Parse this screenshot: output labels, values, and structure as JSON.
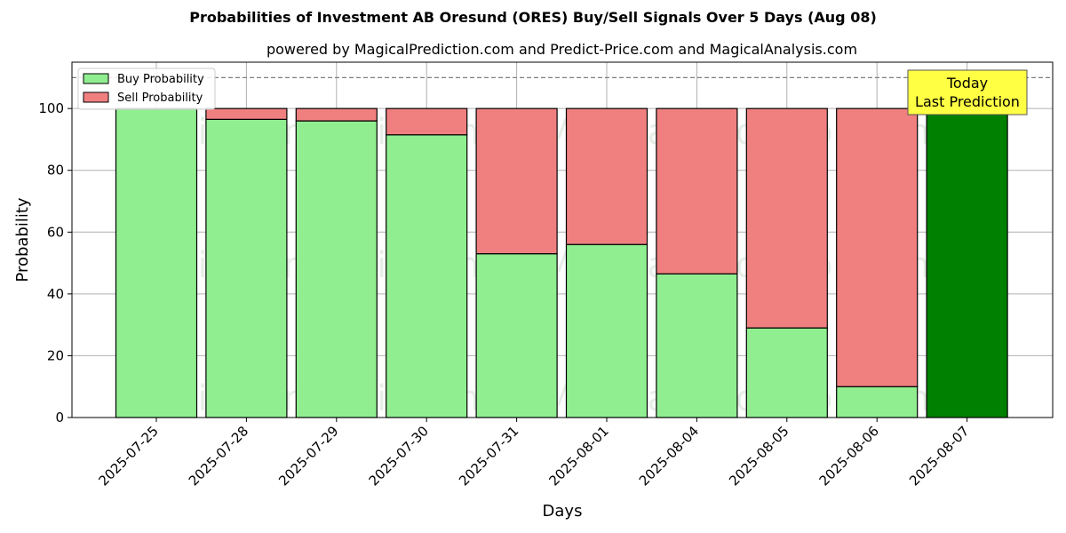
{
  "chart_data": {
    "type": "bar",
    "stacked": true,
    "title": "Probabilities of Investment AB Oresund (ORES) Buy/Sell Signals Over 5 Days (Aug 08)",
    "subtitle": "powered by MagicalPrediction.com and Predict-Price.com and MagicalAnalysis.com",
    "xlabel": "Days",
    "ylabel": "Probability",
    "ylim": [
      0,
      115
    ],
    "yticks": [
      0,
      20,
      40,
      60,
      80,
      100
    ],
    "grid": true,
    "legend_position": "top-left",
    "categories": [
      "2025-07-25",
      "2025-07-28",
      "2025-07-29",
      "2025-07-30",
      "2025-07-31",
      "2025-08-01",
      "2025-08-04",
      "2025-08-05",
      "2025-08-06",
      "2025-08-07"
    ],
    "series": [
      {
        "name": "Buy Probability",
        "color": "#90ee90",
        "values": [
          100,
          96.5,
          96,
          91.5,
          53,
          56,
          46.5,
          29,
          10,
          100
        ]
      },
      {
        "name": "Sell Probability",
        "color": "#f08080",
        "values": [
          0,
          3.5,
          4,
          8.5,
          47,
          44,
          53.5,
          71,
          90,
          0
        ]
      }
    ],
    "highlight": {
      "category": "2025-08-07",
      "color": "#008000"
    },
    "reference_line": {
      "y": 110,
      "style": "dashed",
      "color": "#808080"
    },
    "annotation": {
      "lines": [
        "Today",
        "Last Prediction"
      ],
      "background": "#ffff44"
    },
    "watermarks": [
      "MagicalAnalysis.com",
      "MagicalPrediction.com"
    ]
  }
}
